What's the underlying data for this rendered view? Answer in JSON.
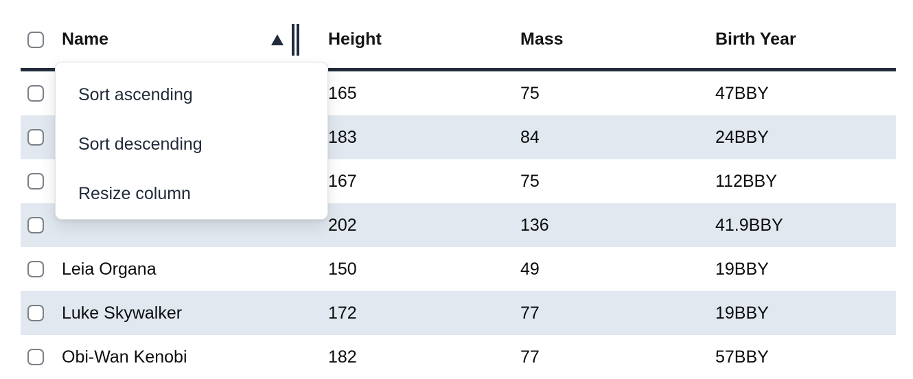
{
  "colors": {
    "dark": "#212b3b",
    "stripe": "#e2e8f0",
    "text": "#0c0d0e",
    "header_text": "#141517",
    "menu_border": "#dee2e6",
    "checkbox_border": "#7a8087"
  },
  "table": {
    "columns": [
      {
        "key": "name",
        "label": "Name",
        "sorted": "ascending"
      },
      {
        "key": "height",
        "label": "Height"
      },
      {
        "key": "mass",
        "label": "Mass"
      },
      {
        "key": "birth_year",
        "label": "Birth Year"
      }
    ],
    "rows": [
      {
        "name": "",
        "height": "165",
        "mass": "75",
        "birth_year": "47BBY",
        "striped": false
      },
      {
        "name": "",
        "height": "183",
        "mass": "84",
        "birth_year": "24BBY",
        "striped": true
      },
      {
        "name": "",
        "height": "167",
        "mass": "75",
        "birth_year": "112BBY",
        "striped": false
      },
      {
        "name": "",
        "height": "202",
        "mass": "136",
        "birth_year": "41.9BBY",
        "striped": true
      },
      {
        "name": "Leia Organa",
        "height": "150",
        "mass": "49",
        "birth_year": "19BBY",
        "striped": false
      },
      {
        "name": "Luke Skywalker",
        "height": "172",
        "mass": "77",
        "birth_year": "19BBY",
        "striped": true
      },
      {
        "name": "Obi-Wan Kenobi",
        "height": "182",
        "mass": "77",
        "birth_year": "57BBY",
        "striped": false
      }
    ]
  },
  "menu": {
    "items": [
      "Sort ascending",
      "Sort descending",
      "Resize column"
    ]
  }
}
